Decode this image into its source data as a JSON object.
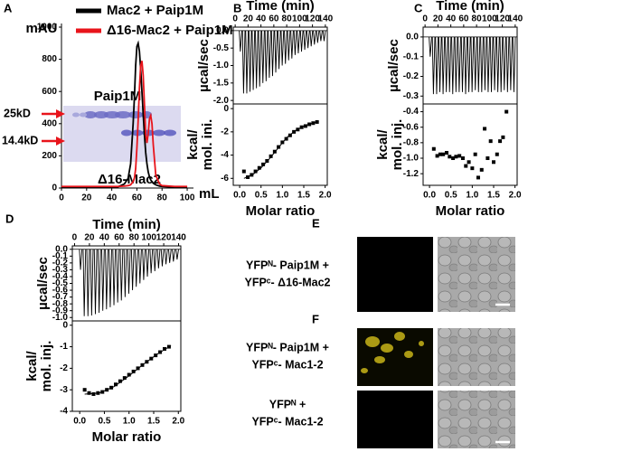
{
  "chart_data": [
    {
      "type": "line",
      "panel": "A",
      "xlabel": "mL",
      "ylabel": "mAU",
      "legend": "top",
      "x": [
        0,
        10,
        20,
        30,
        40,
        45,
        50,
        53,
        55,
        57,
        58,
        59,
        60,
        61,
        62,
        63,
        64,
        65,
        66,
        67,
        68,
        69,
        70,
        71,
        72,
        73,
        75,
        78,
        80,
        90,
        100
      ],
      "series": [
        {
          "name": "Mac2 + Paip1M",
          "color": "#000000",
          "values": [
            5,
            5,
            5,
            5,
            5,
            8,
            25,
            60,
            150,
            400,
            560,
            760,
            880,
            900,
            850,
            740,
            600,
            460,
            330,
            220,
            150,
            100,
            70,
            50,
            40,
            30,
            20,
            12,
            10,
            6,
            5
          ]
        },
        {
          "name": "Δ16-Mac2 + Paip1M",
          "color": "#e8141b",
          "values": [
            10,
            10,
            10,
            10,
            10,
            10,
            12,
            15,
            20,
            40,
            60,
            120,
            250,
            420,
            620,
            760,
            790,
            700,
            520,
            330,
            280,
            340,
            430,
            450,
            400,
            270,
            80,
            25,
            15,
            10,
            10
          ]
        }
      ],
      "xlim": [
        0,
        105
      ],
      "xticks": [
        0,
        20,
        40,
        60,
        80,
        100
      ],
      "ylim": [
        0,
        1000
      ],
      "yticks": [
        0,
        200,
        400,
        600,
        800,
        1000
      ],
      "inset": {
        "labels": [
          "Paip1M",
          "Δ16-Mac2"
        ],
        "markers": [
          "25kD",
          "14.4kD"
        ]
      }
    },
    {
      "type": "spike",
      "panel": "B",
      "xaxis": "top",
      "xlabel": "Time (min)",
      "ylabel": "µcal/sec",
      "x": [
        8,
        13,
        18,
        23,
        28,
        33,
        38,
        43,
        48,
        53,
        58,
        63,
        68,
        73,
        78,
        83,
        88,
        93,
        98,
        103,
        108,
        113,
        118,
        123,
        128,
        133,
        138
      ],
      "values": [
        -0.6,
        -1.8,
        -1.8,
        -1.75,
        -1.7,
        -1.65,
        -1.6,
        -1.5,
        -1.45,
        -1.35,
        -1.3,
        -1.2,
        -1.1,
        -1.0,
        -0.95,
        -0.85,
        -0.8,
        -0.7,
        -0.65,
        -0.6,
        -0.55,
        -0.5,
        -0.45,
        -0.4,
        -0.35,
        -0.3,
        -0.3
      ],
      "xlim": [
        -3,
        143
      ],
      "xticks": [
        0,
        20,
        40,
        60,
        80,
        100,
        120,
        140
      ],
      "ylim": [
        -2.1,
        0.1
      ],
      "yticks": [
        {
          "value": 0,
          "label": "0.0"
        },
        -0.5,
        {
          "value": -1,
          "label": "-1.0"
        },
        -1.5,
        {
          "value": -2,
          "label": "-2.0"
        }
      ]
    },
    {
      "type": "scatter",
      "xlabel": "Molar ratio",
      "ylabel_lines": [
        "kcal/",
        "mol. ini."
      ],
      "x": [
        0.1,
        0.19,
        0.28,
        0.37,
        0.46,
        0.55,
        0.64,
        0.73,
        0.82,
        0.91,
        1.0,
        1.09,
        1.18,
        1.27,
        1.36,
        1.45,
        1.54,
        1.63,
        1.72,
        1.81
      ],
      "values": [
        -5.4,
        -5.9,
        -5.7,
        -5.4,
        -5.1,
        -4.8,
        -4.5,
        -4.1,
        -3.7,
        -3.3,
        -2.9,
        -2.6,
        -2.3,
        -2.0,
        -1.8,
        -1.6,
        -1.5,
        -1.35,
        -1.25,
        -1.15
      ],
      "fit": {
        "x": [
          0.1,
          0.3,
          0.5,
          0.7,
          0.9,
          1.1,
          1.3,
          1.5,
          1.7,
          1.85
        ],
        "values": [
          -6.0,
          -5.7,
          -5.1,
          -4.3,
          -3.4,
          -2.5,
          -1.9,
          -1.5,
          -1.25,
          -1.1
        ]
      },
      "xlim": [
        -0.15,
        2.05
      ],
      "xticks": [
        {
          "value": 0,
          "label": "0.0"
        },
        0.5,
        {
          "value": 1,
          "label": "1.0"
        },
        1.5,
        {
          "value": 2,
          "label": "2.0"
        }
      ],
      "ylim": [
        -6.6,
        0.4
      ],
      "yticks": [
        0,
        -2,
        -4,
        -6
      ]
    },
    {
      "type": "spike",
      "panel": "C",
      "xaxis": "top",
      "xlabel": "Time (min)",
      "ylabel": "µcal/sec",
      "x": [
        8,
        13,
        18,
        23,
        28,
        33,
        38,
        43,
        48,
        53,
        58,
        63,
        68,
        73,
        78,
        83,
        88,
        93,
        98,
        103,
        108,
        113,
        118,
        123,
        128,
        133,
        138
      ],
      "values": [
        -0.1,
        -0.29,
        -0.29,
        -0.28,
        -0.29,
        -0.28,
        -0.28,
        -0.29,
        -0.28,
        -0.28,
        -0.28,
        -0.29,
        -0.28,
        -0.28,
        -0.27,
        -0.28,
        -0.28,
        -0.27,
        -0.28,
        -0.28,
        -0.27,
        -0.28,
        -0.28,
        -0.27,
        -0.28,
        -0.27,
        -0.28
      ],
      "xlim": [
        -3,
        143
      ],
      "xticks": [
        0,
        20,
        40,
        60,
        80,
        100,
        120,
        140
      ],
      "ylim": [
        -0.34,
        0.05
      ],
      "yticks": [
        {
          "value": 0,
          "label": "0.0"
        },
        -0.1,
        -0.2,
        -0.3
      ]
    },
    {
      "type": "scatter",
      "xlabel": "Molar ratio",
      "ylabel_lines": [
        "kcal/",
        "mol. inj."
      ],
      "x": [
        0.1,
        0.18,
        0.25,
        0.32,
        0.4,
        0.47,
        0.55,
        0.62,
        0.7,
        0.78,
        0.85,
        0.92,
        1.0,
        1.07,
        1.14,
        1.22,
        1.29,
        1.36,
        1.43,
        1.5,
        1.58,
        1.65,
        1.72,
        1.8
      ],
      "values": [
        -0.88,
        -0.97,
        -0.95,
        -0.95,
        -0.93,
        -0.98,
        -1.0,
        -0.98,
        -0.97,
        -1.0,
        -1.1,
        -1.05,
        -1.13,
        -0.95,
        -1.25,
        -1.15,
        -0.62,
        -1.0,
        -0.78,
        -1.05,
        -0.95,
        -0.78,
        -0.73,
        -0.4
      ],
      "xlim": [
        -0.15,
        2.05
      ],
      "xticks": [
        {
          "value": 0,
          "label": "0.0"
        },
        0.5,
        {
          "value": 1,
          "label": "1.0"
        },
        1.5,
        {
          "value": 2,
          "label": "2.0"
        }
      ],
      "ylim": [
        -1.35,
        -0.3
      ],
      "yticks": [
        -0.4,
        -0.6,
        -0.8,
        {
          "value": -1,
          "label": "-1.0"
        },
        -1.2
      ]
    },
    {
      "type": "spike",
      "panel": "D",
      "xaxis": "top",
      "xlabel": "Time (min)",
      "ylabel": "µcal/sec",
      "x": [
        8,
        13,
        18,
        23,
        28,
        33,
        38,
        43,
        48,
        53,
        58,
        63,
        68,
        73,
        78,
        83,
        88,
        93,
        98,
        103,
        108,
        113,
        118,
        123,
        128,
        133,
        138
      ],
      "values": [
        -0.3,
        -0.98,
        -0.98,
        -0.97,
        -0.95,
        -0.93,
        -0.9,
        -0.88,
        -0.85,
        -0.82,
        -0.78,
        -0.75,
        -0.7,
        -0.65,
        -0.6,
        -0.55,
        -0.5,
        -0.45,
        -0.4,
        -0.35,
        -0.32,
        -0.28,
        -0.25,
        -0.22,
        -0.2,
        -0.18,
        -0.15
      ],
      "xlim": [
        -3,
        143
      ],
      "xticks": [
        0,
        20,
        40,
        60,
        80,
        100,
        120,
        140
      ],
      "ylim": [
        -1.05,
        0.05
      ],
      "yticks": [
        {
          "value": 0,
          "label": "0.0"
        },
        -0.1,
        -0.2,
        -0.3,
        -0.4,
        -0.5,
        -0.6,
        -0.7,
        -0.8,
        -0.9,
        {
          "value": -1,
          "label": "-1.0"
        }
      ]
    },
    {
      "type": "scatter",
      "xlabel": "Molar ratio",
      "ylabel_lines": [
        "kcal/",
        "mol. inj."
      ],
      "x": [
        0.1,
        0.19,
        0.28,
        0.37,
        0.46,
        0.55,
        0.64,
        0.73,
        0.82,
        0.91,
        1.0,
        1.09,
        1.18,
        1.27,
        1.36,
        1.45,
        1.54,
        1.63,
        1.72,
        1.81
      ],
      "values": [
        -3.0,
        -3.15,
        -3.2,
        -3.15,
        -3.1,
        -3.0,
        -2.9,
        -2.75,
        -2.6,
        -2.45,
        -2.3,
        -2.15,
        -2.0,
        -1.85,
        -1.7,
        -1.55,
        -1.4,
        -1.25,
        -1.1,
        -1.0
      ],
      "fit": {
        "x": [
          0.1,
          0.4,
          0.7,
          1.0,
          1.3,
          1.6,
          1.85
        ],
        "values": [
          -3.2,
          -3.15,
          -2.85,
          -2.35,
          -1.8,
          -1.3,
          -0.95
        ]
      },
      "xlim": [
        -0.15,
        2.05
      ],
      "xticks": [
        {
          "value": 0,
          "label": "0.0"
        },
        0.5,
        {
          "value": 1,
          "label": "1.0"
        },
        1.5,
        {
          "value": 2,
          "label": "2.0"
        }
      ],
      "ylim": [
        -4,
        0.2
      ],
      "yticks": [
        0,
        -1,
        -2,
        -3,
        -4
      ]
    }
  ],
  "microscopy": {
    "panels": [
      {
        "letter": "E",
        "rows": [
          {
            "label": [
              "YFPᴺ- Paip1M +",
              "YFPᶜ- Δ16-Mac2"
            ]
          }
        ]
      },
      {
        "letter": "F",
        "rows": [
          {
            "label": [
              "YFPᴺ- Paip1M +",
              "YFPᶜ- Mac1-2"
            ]
          },
          {
            "label": [
              "YFPᴺ +",
              "YFPᶜ- Mac1-2"
            ]
          }
        ]
      }
    ]
  }
}
